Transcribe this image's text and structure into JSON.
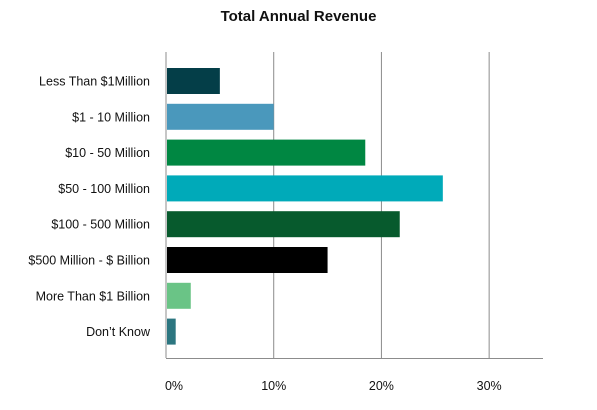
{
  "chart_data": {
    "type": "bar",
    "orientation": "horizontal",
    "title": "Total Annual Revenue",
    "xlabel": "",
    "ylabel": "",
    "xlim": [
      0,
      35
    ],
    "grid": true,
    "legend": "none",
    "x_ticks": [
      "0%",
      "10%",
      "20%",
      "30%"
    ],
    "x_tick_values": [
      0,
      10,
      20,
      30
    ],
    "categories": [
      "Less Than $1Million",
      "$1 - 10 Million",
      "$10 - 50 Million",
      "$50 - 100 Million",
      "$100 - 500 Million",
      "$500 Million - $ Billion",
      "More Than $1 Billion",
      "Don’t Know"
    ],
    "values": [
      5.0,
      10.0,
      18.5,
      25.7,
      21.7,
      15.0,
      2.3,
      0.9
    ],
    "colors": [
      "#043e48",
      "#4a98bc",
      "#008742",
      "#00aab9",
      "#075a2d",
      "#000000",
      "#6ac486",
      "#2c7680"
    ]
  }
}
